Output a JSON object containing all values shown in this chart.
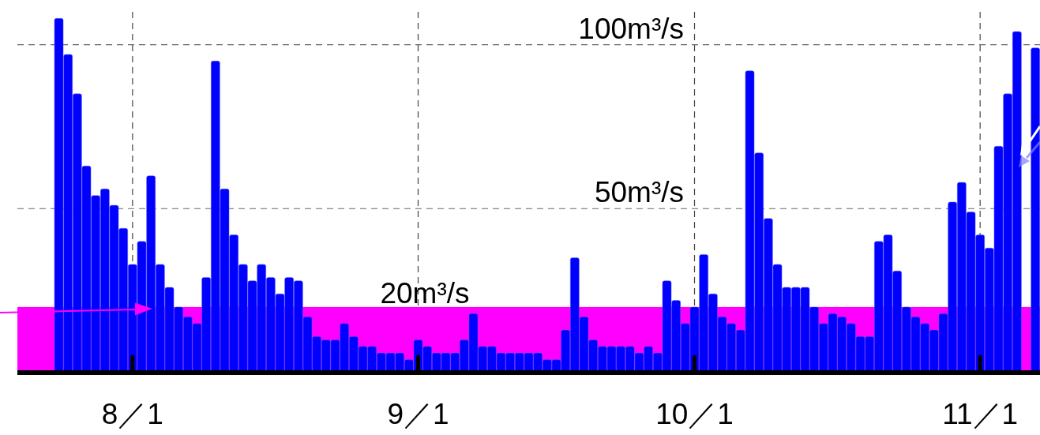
{
  "chart_data": {
    "type": "bar",
    "categories": [
      null,
      null,
      null,
      null,
      null,
      null,
      null,
      null,
      null,
      null,
      null,
      null,
      "8／1",
      null,
      null,
      null,
      null,
      null,
      null,
      null,
      null,
      null,
      null,
      null,
      null,
      null,
      null,
      null,
      null,
      null,
      null,
      null,
      null,
      null,
      null,
      null,
      null,
      null,
      null,
      null,
      null,
      null,
      null,
      "9／1",
      null,
      null,
      null,
      null,
      null,
      null,
      null,
      null,
      null,
      null,
      null,
      null,
      null,
      null,
      null,
      null,
      null,
      null,
      null,
      null,
      null,
      null,
      null,
      null,
      null,
      null,
      null,
      null,
      null,
      "10／1",
      null,
      null,
      null,
      null,
      null,
      null,
      null,
      null,
      null,
      null,
      null,
      null,
      null,
      null,
      null,
      null,
      null,
      null,
      null,
      null,
      null,
      null,
      null,
      null,
      null,
      null,
      null,
      null,
      null,
      null,
      "11／1",
      null,
      null,
      null,
      null,
      null,
      null
    ],
    "values": [
      null,
      null,
      null,
      null,
      108,
      97,
      85,
      63,
      54,
      56,
      51,
      44,
      33,
      40,
      60,
      33,
      26,
      20,
      17,
      15,
      29,
      95,
      56,
      42,
      33,
      28,
      33,
      29,
      24,
      29,
      28,
      17,
      11,
      10,
      10,
      15,
      11,
      8,
      8,
      6,
      6,
      6,
      4,
      10,
      8,
      6,
      6,
      6,
      10,
      18,
      8,
      8,
      6,
      6,
      6,
      6,
      6,
      4,
      4,
      13,
      35,
      17,
      10,
      8,
      8,
      8,
      8,
      6,
      8,
      6,
      28,
      22,
      15,
      20,
      36,
      24,
      17,
      15,
      13,
      92,
      67,
      47,
      33,
      26,
      26,
      26,
      20,
      15,
      18,
      17,
      15,
      11,
      11,
      40,
      42,
      31,
      20,
      17,
      15,
      13,
      18,
      52,
      58,
      49,
      42,
      38,
      69,
      85,
      104,
      null,
      99
    ],
    "color": "#0000ff",
    "ylim": [
      0,
      110
    ],
    "yticks": [
      {
        "value": 50,
        "label": "50m³/s"
      },
      {
        "value": 100,
        "label": "100m³/s"
      }
    ],
    "grid": true,
    "bands": [
      {
        "axis": "y",
        "from": 0,
        "to": 20,
        "label": "20m³/s",
        "color": "#ff00ff"
      }
    ]
  }
}
